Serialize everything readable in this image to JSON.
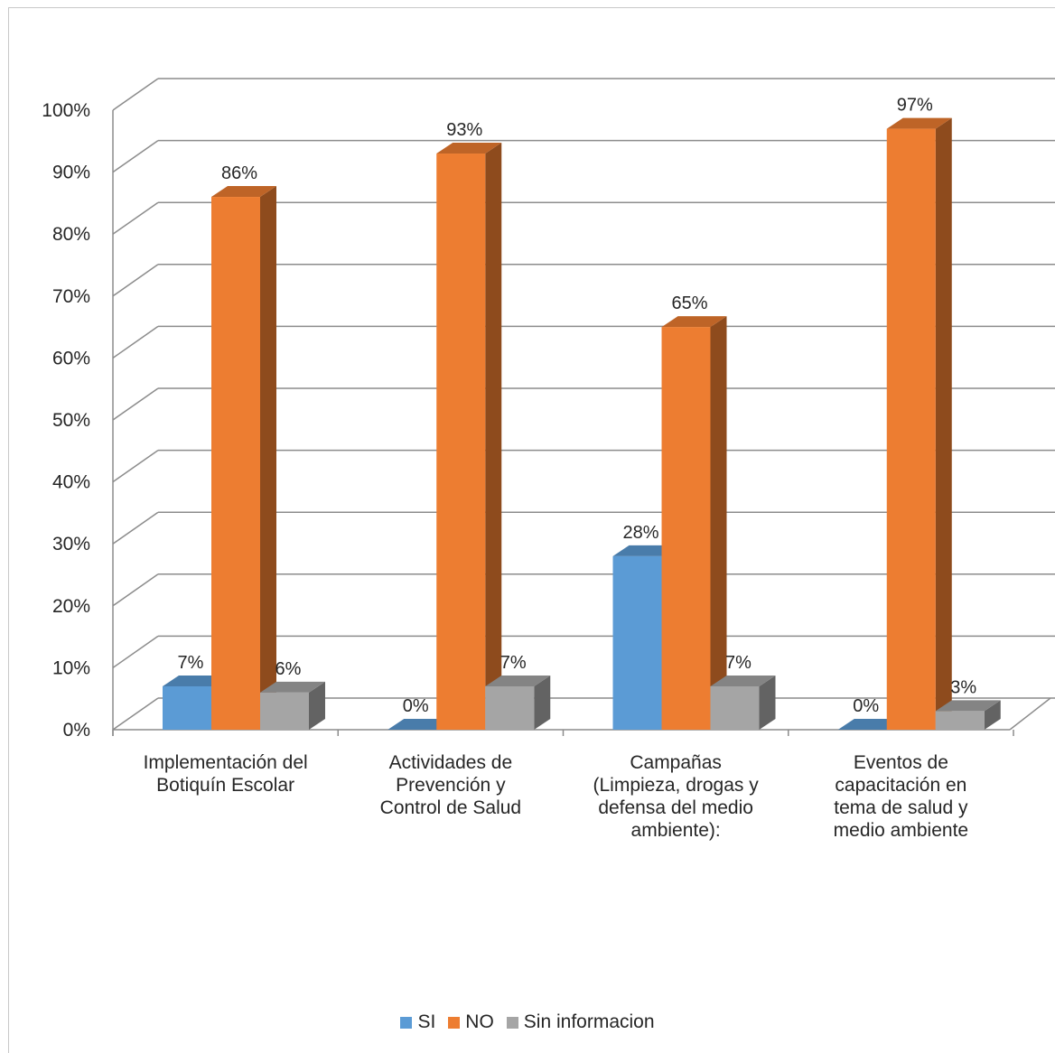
{
  "chart_data": {
    "type": "bar",
    "title": "",
    "xlabel": "",
    "ylabel": "",
    "ylim": [
      0,
      100
    ],
    "y_ticks": [
      "0%",
      "10%",
      "20%",
      "30%",
      "40%",
      "50%",
      "60%",
      "70%",
      "80%",
      "90%",
      "100%"
    ],
    "categories": [
      "Implementación del\nBotiquín Escolar",
      "Actividades de\nPrevención y\nControl de Salud",
      "Campañas\n(Limpieza, drogas y\ndefensa del medio\nambiente):",
      "Eventos de\ncapacitación en\ntema de salud y\nmedio ambiente"
    ],
    "series": [
      {
        "name": "SI",
        "values": [
          7,
          0,
          28,
          0
        ],
        "labels": [
          "7%",
          "0%",
          "28%",
          "0%"
        ],
        "color": "#5b9bd5"
      },
      {
        "name": "NO",
        "values": [
          86,
          93,
          65,
          97
        ],
        "labels": [
          "86%",
          "93%",
          "65%",
          "97%"
        ],
        "color": "#ed7d31"
      },
      {
        "name": "Sin informacion",
        "values": [
          6,
          7,
          7,
          3
        ],
        "labels": [
          "6%",
          "7%",
          "7%",
          "3%"
        ],
        "color": "#a5a5a5"
      }
    ],
    "grid": true,
    "style": "3d-clustered-column",
    "legend_position": "bottom"
  }
}
